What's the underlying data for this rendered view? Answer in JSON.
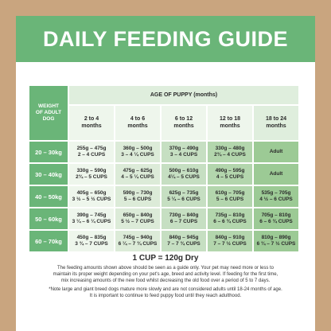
{
  "title": "DAILY FEEDING GUIDE",
  "table": {
    "weight_header": [
      "WEIGHT",
      "OF ADULT",
      "DOG"
    ],
    "age_header": "AGE OF PUPPY (months)",
    "age_columns": [
      [
        "2 to 4",
        "months"
      ],
      [
        "4 to 6",
        "months"
      ],
      [
        "6 to 12",
        "months"
      ],
      [
        "12 to 18",
        "months"
      ],
      [
        "18 to 24",
        "months"
      ]
    ],
    "rows": [
      {
        "weight": "20 – 30kg",
        "cells": [
          [
            "255g – 475g",
            "2 – 4 CUPS"
          ],
          [
            "360g – 500g",
            "3 – 4 ¼ CUPS"
          ],
          [
            "370g – 490g",
            "3 – 4 CUPS"
          ],
          [
            "330g – 480g",
            "2¾ – 4 CUPS"
          ],
          [
            "Adult",
            ""
          ]
        ]
      },
      {
        "weight": "30 – 40kg",
        "cells": [
          [
            "330g – 590g",
            "2¾ – 5 CUPS"
          ],
          [
            "475g – 625g",
            "4 – 5 ¼ CUPS"
          ],
          [
            "500g – 610g",
            "4¼ – 5 CUPS"
          ],
          [
            "490g – 595g",
            "4 – 5 CUPS"
          ],
          [
            "Adult",
            ""
          ]
        ]
      },
      {
        "weight": "40 – 50kg",
        "cells": [
          [
            "405g – 650g",
            "3 ½ – 5 ½ CUPS"
          ],
          [
            "590g – 730g",
            "5 – 6 CUPS"
          ],
          [
            "625g – 735g",
            "5 ¼ – 6 CUPS"
          ],
          [
            "610g – 705g",
            "5 – 6 CUPS"
          ],
          [
            "535g – 705g",
            "4 ½ – 6 CUPS"
          ]
        ]
      },
      {
        "weight": "50 – 60kg",
        "cells": [
          [
            "390g – 745g",
            "3 ¼ – 6 ¼ CUPS"
          ],
          [
            "650g – 840g",
            "5 ½ – 7 CUPS"
          ],
          [
            "730g – 840g",
            "6 – 7 CUPS"
          ],
          [
            "735g – 810g",
            "6 – 6 ¾ CUPS"
          ],
          [
            "705g – 810g",
            "6 – 6 ¾ CUPS"
          ]
        ]
      },
      {
        "weight": "60 – 70kg",
        "cells": [
          [
            "450g – 835g",
            "3 ¾ – 7 CUPS"
          ],
          [
            "745g – 940g",
            "6 ¼ – 7 ¾ CUPS"
          ],
          [
            "840g – 945g",
            "7 – 7 ¾ CUPS"
          ],
          [
            "840g – 910g",
            "7 – 7 ½ CUPS"
          ],
          [
            "810g – 890g",
            "6 ¾ – 7 ½ CUPS"
          ]
        ]
      }
    ]
  },
  "cup_conversion": "1 CUP = 120g Dry",
  "notes": {
    "line1": "The feeding amounts shown above should be seen as a guide only. Your pet may need more or less to",
    "line2": "maintain its proper weight depending on your pet's age, breed and activity level. If feeding for the first time,",
    "line3": "mix increasing amounts of the new food whilst decreasing the old food over a period of 5 to 7 days.",
    "line4": "*Note large and giant breed dogs mature more slowly and are not considered adults until 18-24 months of age.",
    "line5": "It is important to continue to feed puppy food until they reach adulthood."
  },
  "colors": {
    "background_tan": "#c9a57f",
    "brand_green": "#6ab578",
    "panel_white": "#ffffff"
  }
}
